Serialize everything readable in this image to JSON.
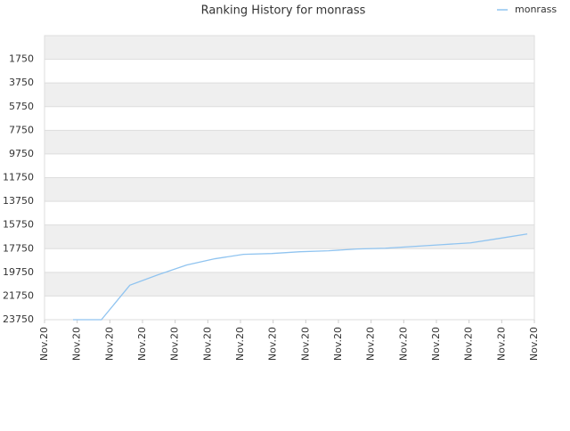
{
  "chart_data": {
    "type": "line",
    "title": "Ranking History for monrass",
    "xtick_labels": [
      "Nov.20",
      "Nov.20",
      "Nov.20",
      "Nov.20",
      "Nov.20",
      "Nov.20",
      "Nov.20",
      "Nov.20",
      "Nov.20",
      "Nov.20",
      "Nov.20",
      "Nov.20",
      "Nov.20",
      "Nov.20",
      "Nov.20",
      "Nov.20"
    ],
    "series": [
      {
        "name": "monrass",
        "color": "#90c4f0",
        "values": [
          23750,
          23750,
          20840,
          19950,
          19130,
          18600,
          18230,
          18160,
          18010,
          17930,
          17780,
          17710,
          17560,
          17410,
          17260,
          16890,
          16510
        ]
      }
    ],
    "ylim": [
      23750,
      -250
    ],
    "yticks": [
      1750,
      3750,
      5750,
      7750,
      9750,
      11750,
      13750,
      15750,
      17750,
      19750,
      21750,
      23750
    ],
    "inverted_y": true,
    "grid": true,
    "legend": "top-right"
  }
}
